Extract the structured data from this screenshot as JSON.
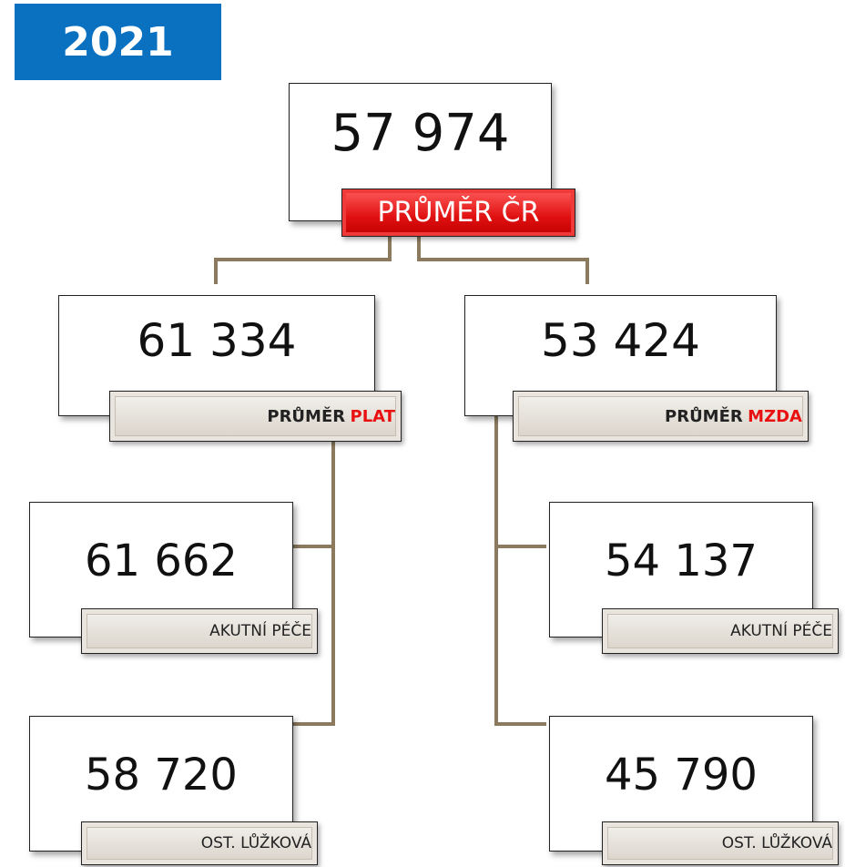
{
  "year": "2021",
  "nodes": [
    {
      "value": "57 974",
      "label": "PRŮMĚR ČR"
    },
    {
      "value": "61 334",
      "label": "PRŮMĚR",
      "highlight": "PLAT"
    },
    {
      "value": "53 424",
      "label": "PRŮMĚR",
      "highlight": "MZDA"
    },
    {
      "value": "61 662",
      "label": "AKUTNÍ PÉČE"
    },
    {
      "value": "58 720",
      "label": "OST. LŮŽKOVÁ"
    },
    {
      "value": "54 137",
      "label": "AKUTNÍ PÉČE"
    },
    {
      "value": "45 790",
      "label": "OST. LŮŽKOVÁ"
    }
  ]
}
